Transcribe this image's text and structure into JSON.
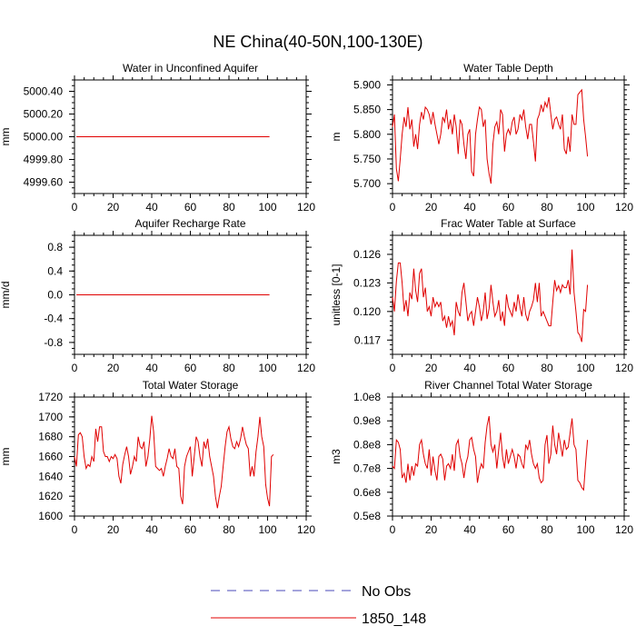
{
  "figure": {
    "title": "NE China(40-50N,100-130E)"
  },
  "legend": {
    "entries": [
      {
        "label": "No Obs",
        "color": "#4a4ab8",
        "dash": true
      },
      {
        "label": "1850_148",
        "color": "#e00000",
        "dash": false
      }
    ]
  },
  "chart_data": [
    {
      "type": "line",
      "title": "Water in Unconfined Aquifer",
      "ylabel": "mm",
      "xlabel": "",
      "xlim": [
        0,
        120
      ],
      "ylim": [
        4999.5,
        5000.5
      ],
      "xticks": [
        0,
        20,
        40,
        60,
        80,
        100,
        120
      ],
      "xtick_labels": [
        "0",
        "20",
        "40",
        "60",
        "80",
        "100",
        "120"
      ],
      "yticks": [
        4999.6,
        4999.8,
        5000.0,
        5000.2,
        5000.4
      ],
      "ytick_labels": [
        "4999.60",
        "4999.80",
        "5000.00",
        "5000.20",
        "5000.40"
      ],
      "yminor": 0.05,
      "series": [
        {
          "color": "#e00000",
          "x": [
            1,
            101
          ],
          "y": [
            5000.0,
            5000.0
          ]
        }
      ]
    },
    {
      "type": "line",
      "title": "Water Table Depth",
      "ylabel": "m",
      "xlabel": "",
      "xlim": [
        0,
        120
      ],
      "ylim": [
        5.68,
        5.91
      ],
      "xticks": [
        0,
        20,
        40,
        60,
        80,
        100,
        120
      ],
      "xtick_labels": [
        "0",
        "20",
        "40",
        "60",
        "80",
        "100",
        "120"
      ],
      "yticks": [
        5.7,
        5.75,
        5.8,
        5.85,
        5.9
      ],
      "ytick_labels": [
        "5.700",
        "5.750",
        "5.800",
        "5.850",
        "5.900"
      ],
      "yminor": 0.01,
      "series": [
        {
          "color": "#e00000",
          "y": [
            5.815,
            5.84,
            5.73,
            5.705,
            5.75,
            5.8,
            5.835,
            5.815,
            5.855,
            5.81,
            5.83,
            5.775,
            5.8,
            5.77,
            5.82,
            5.845,
            5.83,
            5.855,
            5.85,
            5.84,
            5.82,
            5.845,
            5.82,
            5.8,
            5.78,
            5.8,
            5.835,
            5.825,
            5.85,
            5.81,
            5.83,
            5.8,
            5.84,
            5.815,
            5.76,
            5.83,
            5.82,
            5.78,
            5.75,
            5.8,
            5.81,
            5.725,
            5.715,
            5.8,
            5.83,
            5.855,
            5.85,
            5.815,
            5.83,
            5.75,
            5.72,
            5.7,
            5.78,
            5.815,
            5.825,
            5.8,
            5.85,
            5.84,
            5.765,
            5.8,
            5.81,
            5.8,
            5.825,
            5.835,
            5.8,
            5.81,
            5.84,
            5.83,
            5.85,
            5.815,
            5.79,
            5.82,
            5.82,
            5.785,
            5.745,
            5.83,
            5.84,
            5.86,
            5.845,
            5.865,
            5.855,
            5.875,
            5.84,
            5.81,
            5.83,
            5.835,
            5.82,
            5.81,
            5.84,
            5.77,
            5.76,
            5.795,
            5.765,
            5.84,
            5.82,
            5.82,
            5.88,
            5.885,
            5.89,
            5.83,
            5.795,
            5.755
          ]
        }
      ]
    },
    {
      "type": "line",
      "title": "Aquifer Recharge Rate",
      "ylabel": "mm/d",
      "xlabel": "",
      "xlim": [
        0,
        120
      ],
      "ylim": [
        -1.0,
        1.0
      ],
      "xticks": [
        0,
        20,
        40,
        60,
        80,
        100,
        120
      ],
      "xtick_labels": [
        "0",
        "20",
        "40",
        "60",
        "80",
        "100",
        "120"
      ],
      "yticks": [
        -0.8,
        -0.4,
        0.0,
        0.4,
        0.8
      ],
      "ytick_labels": [
        "-0.8",
        "-0.4",
        "0.0",
        "0.4",
        "0.8"
      ],
      "yminor": 0.1,
      "series": [
        {
          "color": "#e00000",
          "x": [
            1,
            101
          ],
          "y": [
            0.0,
            0.0
          ]
        }
      ]
    },
    {
      "type": "line",
      "title": "Frac Water Table at Surface",
      "ylabel": "unitless [0-1]",
      "xlabel": "",
      "xlim": [
        0,
        120
      ],
      "ylim": [
        0.1155,
        0.128
      ],
      "xticks": [
        0,
        20,
        40,
        60,
        80,
        100,
        120
      ],
      "xtick_labels": [
        "0",
        "20",
        "40",
        "60",
        "80",
        "100",
        "120"
      ],
      "yticks": [
        0.117,
        0.12,
        0.123,
        0.126
      ],
      "ytick_labels": [
        "0.117",
        "0.120",
        "0.123",
        "0.126"
      ],
      "yminor": 0.0005,
      "series": [
        {
          "color": "#e00000",
          "y": [
            0.1215,
            0.12,
            0.1232,
            0.1251,
            0.1251,
            0.123,
            0.12,
            0.1212,
            0.1195,
            0.122,
            0.1213,
            0.1245,
            0.1222,
            0.121,
            0.124,
            0.1245,
            0.1215,
            0.1225,
            0.12,
            0.1205,
            0.1195,
            0.1215,
            0.1205,
            0.121,
            0.1205,
            0.121,
            0.119,
            0.1195,
            0.1183,
            0.1195,
            0.1185,
            0.119,
            0.1175,
            0.121,
            0.12,
            0.1195,
            0.122,
            0.123,
            0.121,
            0.119,
            0.1197,
            0.12,
            0.1185,
            0.12,
            0.1215,
            0.1205,
            0.119,
            0.12,
            0.122,
            0.1192,
            0.1203,
            0.1228,
            0.121,
            0.1195,
            0.12,
            0.1212,
            0.119,
            0.12,
            0.1185,
            0.1218,
            0.1205,
            0.12,
            0.1195,
            0.121,
            0.12,
            0.1218,
            0.1205,
            0.1195,
            0.1215,
            0.1197,
            0.119,
            0.12,
            0.1205,
            0.1212,
            0.123,
            0.121,
            0.123,
            0.1195,
            0.12,
            0.1195,
            0.119,
            0.1185,
            0.1185,
            0.121,
            0.1233,
            0.1222,
            0.1227,
            0.122,
            0.1228,
            0.1225,
            0.1225,
            0.1233,
            0.1218,
            0.1265,
            0.122,
            0.12,
            0.1178,
            0.1175,
            0.1168,
            0.1202,
            0.12,
            0.1228
          ]
        }
      ]
    },
    {
      "type": "line",
      "title": "Total Water Storage",
      "ylabel": "mm",
      "xlabel": "",
      "xlim": [
        0,
        120
      ],
      "ylim": [
        1600,
        1720
      ],
      "xticks": [
        0,
        20,
        40,
        60,
        80,
        100,
        120
      ],
      "xtick_labels": [
        "0",
        "20",
        "40",
        "60",
        "80",
        "100",
        "120"
      ],
      "yticks": [
        1600,
        1620,
        1640,
        1660,
        1680,
        1700,
        1720
      ],
      "ytick_labels": [
        "1600",
        "1620",
        "1640",
        "1660",
        "1680",
        "1700",
        "1720"
      ],
      "yminor": 5,
      "series": [
        {
          "color": "#e00000",
          "y": [
            1660,
            1650,
            1682,
            1684,
            1680,
            1660,
            1648,
            1652,
            1650,
            1660,
            1655,
            1688,
            1675,
            1690,
            1690,
            1665,
            1660,
            1660,
            1655,
            1660,
            1658,
            1662,
            1658,
            1640,
            1633,
            1652,
            1662,
            1670,
            1660,
            1642,
            1650,
            1660,
            1655,
            1680,
            1670,
            1668,
            1675,
            1650,
            1660,
            1678,
            1701,
            1685,
            1650,
            1648,
            1646,
            1648,
            1640,
            1650,
            1658,
            1668,
            1660,
            1658,
            1668,
            1650,
            1648,
            1620,
            1612,
            1650,
            1660,
            1665,
            1670,
            1640,
            1660,
            1680,
            1675,
            1660,
            1650,
            1675,
            1668,
            1678,
            1660,
            1650,
            1640,
            1620,
            1608,
            1620,
            1630,
            1650,
            1670,
            1685,
            1690,
            1678,
            1670,
            1668,
            1675,
            1670,
            1678,
            1690,
            1680,
            1672,
            1668,
            1640,
            1650,
            1640,
            1665,
            1680,
            1700,
            1680,
            1670,
            1632,
            1618,
            1610,
            1660,
            1662
          ]
        }
      ]
    },
    {
      "type": "line",
      "title": "River Channel Total Water Storage",
      "ylabel": "m3",
      "xlabel": "",
      "xlim": [
        0,
        120
      ],
      "ylim": [
        0.5,
        1.0
      ],
      "xticks": [
        0,
        20,
        40,
        60,
        80,
        100,
        120
      ],
      "xtick_labels": [
        "0",
        "20",
        "40",
        "60",
        "80",
        "100",
        "120"
      ],
      "yticks": [
        0.5,
        0.6,
        0.7,
        0.8,
        0.9,
        1.0
      ],
      "ytick_labels": [
        "0.5e8",
        "0.6e8",
        "0.7e8",
        "0.8e8",
        "0.9e8",
        "1.0e8"
      ],
      "yminor": 0.025,
      "series": [
        {
          "color": "#e00000",
          "y": [
            0.71,
            0.7,
            0.82,
            0.81,
            0.78,
            0.66,
            0.68,
            0.64,
            0.72,
            0.65,
            0.71,
            0.67,
            0.72,
            0.71,
            0.8,
            0.82,
            0.76,
            0.72,
            0.7,
            0.78,
            0.67,
            0.75,
            0.69,
            0.65,
            0.75,
            0.76,
            0.74,
            0.65,
            0.71,
            0.72,
            0.7,
            0.76,
            0.69,
            0.8,
            0.82,
            0.75,
            0.72,
            0.66,
            0.72,
            0.75,
            0.82,
            0.83,
            0.78,
            0.75,
            0.64,
            0.69,
            0.72,
            0.7,
            0.81,
            0.88,
            0.92,
            0.8,
            0.77,
            0.8,
            0.7,
            0.78,
            0.85,
            0.75,
            0.7,
            0.78,
            0.72,
            0.75,
            0.78,
            0.75,
            0.7,
            0.76,
            0.75,
            0.72,
            0.7,
            0.8,
            0.78,
            0.82,
            0.76,
            0.72,
            0.7,
            0.72,
            0.66,
            0.64,
            0.65,
            0.8,
            0.84,
            0.72,
            0.76,
            0.88,
            0.8,
            0.76,
            0.85,
            0.8,
            0.75,
            0.82,
            0.78,
            0.79,
            0.85,
            0.91,
            0.8,
            0.78,
            0.65,
            0.64,
            0.62,
            0.61,
            0.72,
            0.82
          ]
        }
      ]
    }
  ]
}
